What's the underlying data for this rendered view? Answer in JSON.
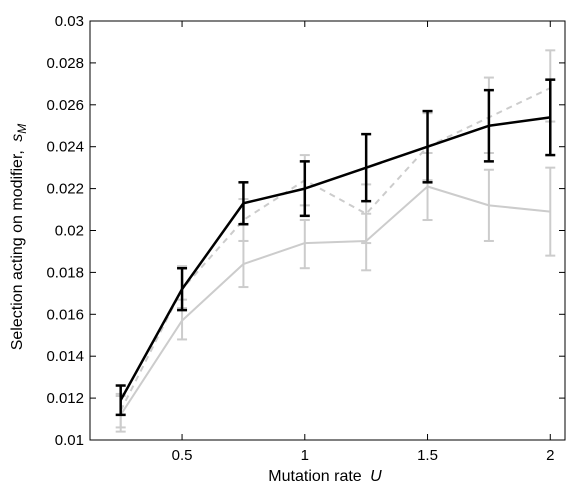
{
  "chart_data": {
    "type": "line",
    "title": "",
    "xlabel": "Mutation rate",
    "xlabel_var": "U",
    "ylabel": "Selection acting on modifier,",
    "ylabel_var": "s",
    "ylabel_sub": "M",
    "xlim": [
      0.125,
      2.06
    ],
    "ylim": [
      0.01,
      0.03
    ],
    "x_ticks": [
      0.5,
      1,
      1.5,
      2
    ],
    "x_tick_labels": [
      "0.5",
      "1",
      "1.5",
      "2"
    ],
    "y_ticks": [
      0.01,
      0.012,
      0.014,
      0.016,
      0.018,
      0.02,
      0.022,
      0.024,
      0.026,
      0.028,
      0.03
    ],
    "y_tick_labels": [
      "0.01",
      "0.012",
      "0.014",
      "0.016",
      "0.018",
      "0.02",
      "0.022",
      "0.024",
      "0.026",
      "0.028",
      "0.03"
    ],
    "grid": false,
    "x": [
      0.25,
      0.5,
      0.75,
      1.0,
      1.25,
      1.5,
      1.75,
      2.0
    ],
    "series": [
      {
        "style": "solid",
        "color": "#cccccc",
        "values": [
          0.0112,
          0.0157,
          0.0184,
          0.0194,
          0.0195,
          0.0221,
          0.0212,
          0.0209
        ],
        "err_low": [
          0.0104,
          0.0148,
          0.0173,
          0.0182,
          0.0181,
          0.0205,
          0.0195,
          0.0188
        ],
        "err_high": [
          0.0121,
          0.0167,
          0.0195,
          0.0205,
          0.0208,
          0.0237,
          0.0229,
          0.023
        ]
      },
      {
        "style": "dashed",
        "color": "#cccccc",
        "values": [
          0.0114,
          0.0172,
          0.0205,
          0.0224,
          0.0208,
          0.024,
          0.0254,
          0.0268
        ],
        "err_low": [
          0.0106,
          0.0163,
          0.0195,
          0.0212,
          0.0194,
          0.0224,
          0.0237,
          0.0252
        ],
        "err_high": [
          0.0122,
          0.0183,
          0.0215,
          0.0236,
          0.0222,
          0.0256,
          0.0273,
          0.0286
        ]
      },
      {
        "style": "solid",
        "color": "#000000",
        "values": [
          0.0119,
          0.0172,
          0.0213,
          0.022,
          0.023,
          0.024,
          0.025,
          0.0254
        ],
        "err_low": [
          0.0112,
          0.0162,
          0.0203,
          0.0207,
          0.0214,
          0.0223,
          0.0233,
          0.0236
        ],
        "err_high": [
          0.0126,
          0.0182,
          0.0223,
          0.0233,
          0.0246,
          0.0257,
          0.0267,
          0.0272
        ]
      }
    ]
  }
}
